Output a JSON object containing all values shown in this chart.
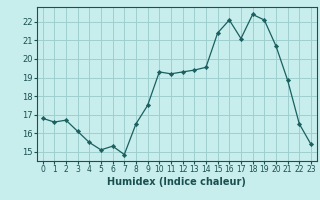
{
  "x": [
    0,
    1,
    2,
    3,
    4,
    5,
    6,
    7,
    8,
    9,
    10,
    11,
    12,
    13,
    14,
    15,
    16,
    17,
    18,
    19,
    20,
    21,
    22,
    23
  ],
  "y": [
    16.8,
    16.6,
    16.7,
    16.1,
    15.5,
    15.1,
    15.3,
    14.85,
    16.5,
    17.5,
    19.3,
    19.2,
    19.3,
    19.4,
    19.55,
    21.4,
    22.1,
    21.1,
    22.4,
    22.1,
    20.7,
    18.85,
    16.5,
    15.4
  ],
  "xlabel": "Humidex (Indice chaleur)",
  "xlim": [
    -0.5,
    23.5
  ],
  "ylim": [
    14.5,
    22.8
  ],
  "yticks": [
    15,
    16,
    17,
    18,
    19,
    20,
    21,
    22
  ],
  "xtick_labels": [
    "0",
    "1",
    "2",
    "3",
    "4",
    "5",
    "6",
    "7",
    "8",
    "9",
    "10",
    "11",
    "12",
    "13",
    "14",
    "15",
    "16",
    "17",
    "18",
    "19",
    "20",
    "21",
    "22",
    "23"
  ],
  "bg_color": "#c8eded",
  "grid_color": "#9ecfcf",
  "line_color": "#1a6060",
  "marker_color": "#1a6060",
  "font_color": "#1a5050",
  "axis_fontsize": 7.0,
  "tick_fontsize": 6.0
}
